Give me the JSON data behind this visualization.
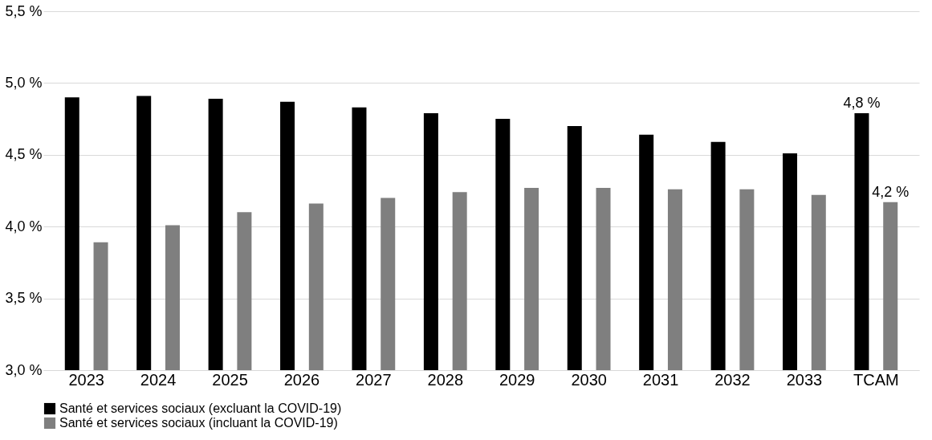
{
  "chart_data": {
    "type": "bar",
    "categories": [
      "2023",
      "2024",
      "2025",
      "2026",
      "2027",
      "2028",
      "2029",
      "2030",
      "2031",
      "2032",
      "2033",
      "TCAM"
    ],
    "series": [
      {
        "name": "Santé et services sociaux (excluant la COVID-19)",
        "color": "#000000",
        "values": [
          4.9,
          4.91,
          4.89,
          4.87,
          4.83,
          4.79,
          4.75,
          4.7,
          4.64,
          4.59,
          4.51,
          4.79
        ],
        "value_labels": [
          null,
          null,
          null,
          null,
          null,
          null,
          null,
          null,
          null,
          null,
          null,
          "4,8 %"
        ]
      },
      {
        "name": "Santé et services sociaux (incluant la COVID-19)",
        "color": "#7f7f7f",
        "values": [
          3.89,
          4.01,
          4.1,
          4.16,
          4.2,
          4.24,
          4.27,
          4.27,
          4.26,
          4.26,
          4.22,
          4.17
        ],
        "value_labels": [
          null,
          null,
          null,
          null,
          null,
          null,
          null,
          null,
          null,
          null,
          null,
          "4,2 %"
        ]
      }
    ],
    "ylim": [
      3.0,
      5.5
    ],
    "yticks": [
      {
        "value": 3.0,
        "label": "3,0 %"
      },
      {
        "value": 3.5,
        "label": "3,5 %"
      },
      {
        "value": 4.0,
        "label": "4,0 %"
      },
      {
        "value": 4.5,
        "label": "4,5 %"
      },
      {
        "value": 5.0,
        "label": "5,0 %"
      },
      {
        "value": 5.5,
        "label": "5,5 %"
      }
    ],
    "grid": "y",
    "legend": "bottom"
  }
}
